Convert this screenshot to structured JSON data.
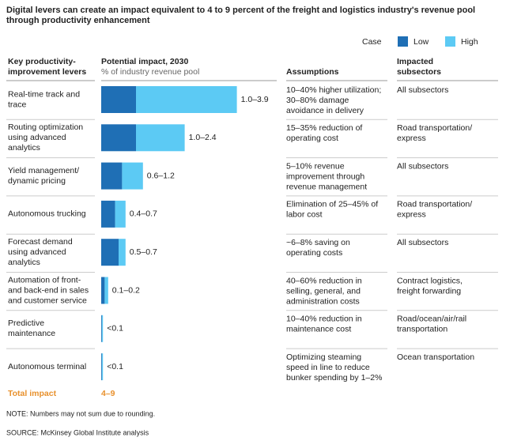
{
  "chart_data": {
    "type": "range_bar",
    "title": [
      "Digital levers can create an impact equivalent to 4 to 9 percent of the freight and logistics industry's revenue pool",
      "through productivity enhancement"
    ],
    "legend_title": "Case",
    "headers": {
      "levers": [
        "Key productivity-",
        "improvement levers"
      ],
      "impact": "Potential impact, 2030",
      "impact_unit": "% of industry revenue pool",
      "assumptions": "Assumptions",
      "subsectors": [
        "Impacted",
        "subsectors"
      ]
    },
    "categories": [
      [
        "Real-time track and",
        "trace"
      ],
      [
        "Routing optimization",
        "using advanced",
        "analytics"
      ],
      [
        "Yield management/",
        "dynamic pricing"
      ],
      [
        "Autonomous trucking"
      ],
      [
        "Forecast demand",
        "using advanced",
        "analytics"
      ],
      [
        "Automation of front-",
        "and back-end in sales",
        "and customer service"
      ],
      [
        "Predictive",
        "maintenance"
      ],
      [
        "Autonomous terminal"
      ]
    ],
    "series": [
      {
        "name": "Low",
        "color": "#1f6fb5",
        "values": [
          1.0,
          1.0,
          0.6,
          0.4,
          0.5,
          0.1,
          0.02,
          0.02
        ]
      },
      {
        "name": "High",
        "color": "#5ccaf4",
        "values": [
          3.9,
          2.4,
          1.2,
          0.7,
          0.7,
          0.2,
          0.05,
          0.05
        ],
        "value_labels": [
          "1.0–3.9",
          "1.0–2.4",
          "0.6–1.2",
          "0.4–0.7",
          "0.5–0.7",
          "0.1–0.2",
          "<0.1",
          "<0.1"
        ]
      }
    ],
    "xlim": [
      0,
      4
    ],
    "assumptions": [
      [
        "10–40% higher utilization;",
        "30–80% damage",
        "avoidance in delivery"
      ],
      [
        "15–35% reduction of",
        "operating cost"
      ],
      [
        "5–10% revenue",
        "improvement through",
        "revenue management"
      ],
      [
        "Elimination of 25–45% of",
        "labor cost"
      ],
      [
        "~6–8% saving on",
        "operating costs"
      ],
      [
        "40–60% reduction in",
        "selling, general, and",
        "administration costs"
      ],
      [
        "10–40% reduction in",
        "maintenance cost"
      ],
      [
        "Optimizing steaming",
        "speed in line to reduce",
        "bunker spending by 1–2%"
      ]
    ],
    "subsectors": [
      [
        "All subsectors"
      ],
      [
        "Road transportation/",
        "express"
      ],
      [
        "All subsectors"
      ],
      [
        "Road transportation/",
        "express"
      ],
      [
        "All subsectors"
      ],
      [
        "Contract logistics,",
        "freight forwarding"
      ],
      [
        "Road/ocean/air/rail",
        "transportation"
      ],
      [
        "Ocean transportation"
      ]
    ],
    "total_label": "Total impact",
    "total_value": "4–9",
    "note": "NOTE: Numbers may not sum due to rounding.",
    "source": "SOURCE:  McKinsey Global Institute analysis"
  }
}
